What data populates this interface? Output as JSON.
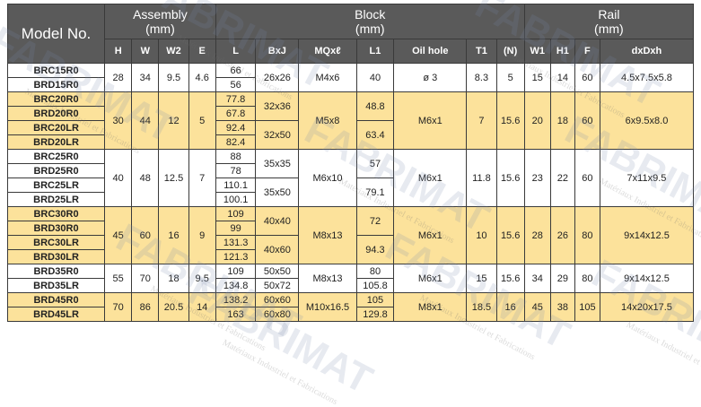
{
  "header": {
    "model": "Model No.",
    "assembly": "Assembly\n(mm)",
    "block": "Block\n(mm)",
    "rail": "Rail\n(mm)",
    "cols": [
      "H",
      "W",
      "W2",
      "E",
      "L",
      "BxJ",
      "MQxℓ",
      "L1",
      "Oil hole",
      "T1",
      "(N)",
      "W1",
      "H1",
      "F",
      "dxDxh"
    ]
  },
  "groups": [
    {
      "theme": "white",
      "models": [
        "BRC15R0",
        "BRD15R0"
      ],
      "H": "28",
      "W": "34",
      "W2": "9.5",
      "E": "4.6",
      "L": [
        "66",
        "56"
      ],
      "BxJ": [
        "26x26"
      ],
      "MQ": "M4x6",
      "L1": [
        "40"
      ],
      "oil": "ø 3",
      "T1": "8.3",
      "N": "5",
      "W1": "15",
      "H1": "14",
      "F": "60",
      "dDh": "4.5x7.5x5.8"
    },
    {
      "theme": "gold",
      "models": [
        "BRC20R0",
        "BRD20R0",
        "BRC20LR",
        "BRD20LR"
      ],
      "H": "30",
      "W": "44",
      "W2": "12",
      "E": "5",
      "L": [
        "77.8",
        "67.8",
        "92.4",
        "82.4"
      ],
      "BxJ": [
        "32x36",
        "32x50"
      ],
      "MQ": "M5x8",
      "L1": [
        "48.8",
        "63.4"
      ],
      "oil": "M6x1",
      "T1": "7",
      "N": "15.6",
      "W1": "20",
      "H1": "18",
      "F": "60",
      "dDh": "6x9.5x8.0"
    },
    {
      "theme": "white",
      "models": [
        "BRC25R0",
        "BRD25R0",
        "BRC25LR",
        "BRD25LR"
      ],
      "H": "40",
      "W": "48",
      "W2": "12.5",
      "E": "7",
      "L": [
        "88",
        "78",
        "110.1",
        "100.1"
      ],
      "BxJ": [
        "35x35",
        "35x50"
      ],
      "MQ": "M6x10",
      "L1": [
        "57",
        "79.1"
      ],
      "oil": "M6x1",
      "T1": "11.8",
      "N": "15.6",
      "W1": "23",
      "H1": "22",
      "F": "60",
      "dDh": "7x11x9.5"
    },
    {
      "theme": "gold",
      "models": [
        "BRC30R0",
        "BRD30R0",
        "BRC30LR",
        "BRD30LR"
      ],
      "H": "45",
      "W": "60",
      "W2": "16",
      "E": "9",
      "L": [
        "109",
        "99",
        "131.3",
        "121.3"
      ],
      "BxJ": [
        "40x40",
        "40x60"
      ],
      "MQ": "M8x13",
      "L1": [
        "72",
        "94.3"
      ],
      "oil": "M6x1",
      "T1": "10",
      "N": "15.6",
      "W1": "28",
      "H1": "26",
      "F": "80",
      "dDh": "9x14x12.5"
    },
    {
      "theme": "white",
      "models": [
        "BRD35R0",
        "BRD35LR"
      ],
      "H": "55",
      "W": "70",
      "W2": "18",
      "E": "9.5",
      "L": [
        "109",
        "134.8"
      ],
      "BxJ": [
        "50x50",
        "50x72"
      ],
      "MQ": "M8x13",
      "L1": [
        "80",
        "105.8"
      ],
      "oil": "M6x1",
      "T1": "15",
      "N": "15.6",
      "W1": "34",
      "H1": "29",
      "F": "80",
      "dDh": "9x14x12.5"
    },
    {
      "theme": "gold",
      "models": [
        "BRD45R0",
        "BRD45LR"
      ],
      "H": "70",
      "W": "86",
      "W2": "20.5",
      "E": "14",
      "L": [
        "138.2",
        "163"
      ],
      "BxJ": [
        "60x60",
        "60x80"
      ],
      "MQ": "M10x16.5",
      "L1": [
        "105",
        "129.8"
      ],
      "oil": "M8x1",
      "T1": "18.5",
      "N": "16",
      "W1": "45",
      "H1": "38",
      "F": "105",
      "dDh": "14x20x17.5"
    }
  ],
  "watermark": {
    "brand": "FABRIMAT",
    "tagline": "Matériaux Industriel et Fabrications"
  }
}
